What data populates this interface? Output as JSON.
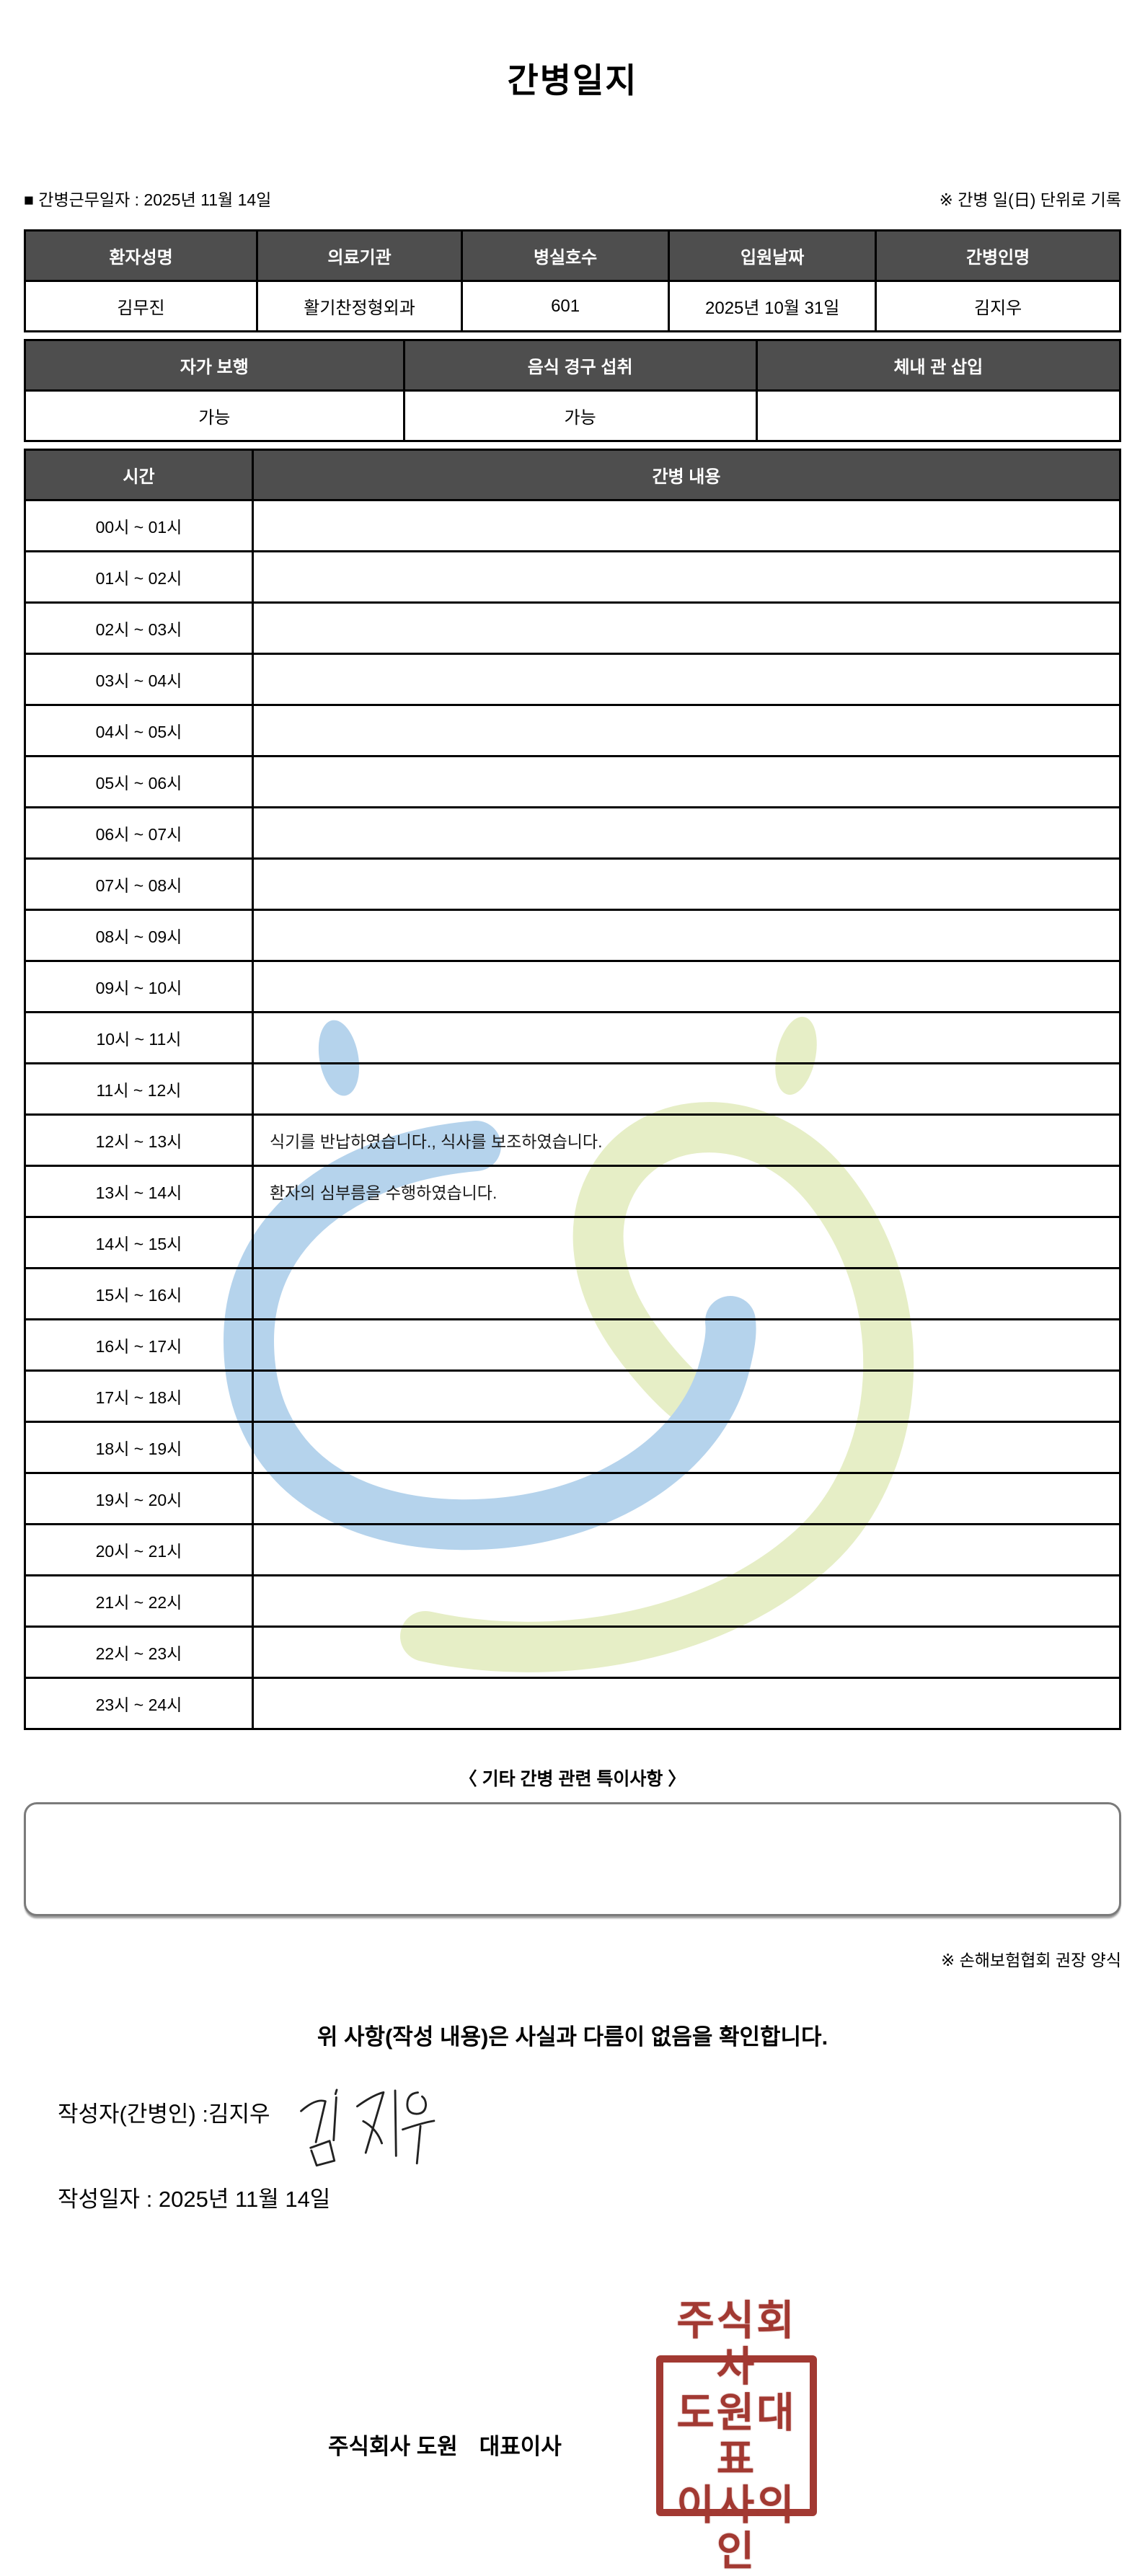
{
  "title": "간병일지",
  "meta": {
    "work_date_label": "■ 간병근무일자 : ",
    "work_date": "2025년 11월 14일",
    "unit_note": "※ 간병 일(日) 단위로 기록"
  },
  "patient_table": {
    "headers": [
      "환자성명",
      "의료기관",
      "병실호수",
      "입원날짜",
      "간병인명"
    ],
    "values": [
      "김무진",
      "활기찬정형외과",
      "601",
      "2025년 10월 31일",
      "김지우"
    ]
  },
  "condition_table": {
    "headers": [
      "자가 보행",
      "음식 경구 섭취",
      "체내 관 삽입"
    ],
    "values": [
      "가능",
      "가능",
      ""
    ]
  },
  "care_log": {
    "time_header": "시간",
    "content_header": "간병 내용",
    "rows": [
      {
        "time": "00시 ~ 01시",
        "content": ""
      },
      {
        "time": "01시 ~ 02시",
        "content": ""
      },
      {
        "time": "02시 ~ 03시",
        "content": ""
      },
      {
        "time": "03시 ~ 04시",
        "content": ""
      },
      {
        "time": "04시 ~ 05시",
        "content": ""
      },
      {
        "time": "05시 ~ 06시",
        "content": ""
      },
      {
        "time": "06시 ~ 07시",
        "content": ""
      },
      {
        "time": "07시 ~ 08시",
        "content": ""
      },
      {
        "time": "08시 ~ 09시",
        "content": ""
      },
      {
        "time": "09시 ~ 10시",
        "content": ""
      },
      {
        "time": "10시 ~ 11시",
        "content": ""
      },
      {
        "time": "11시 ~ 12시",
        "content": ""
      },
      {
        "time": "12시 ~ 13시",
        "content": "식기를 반납하였습니다., 식사를 보조하였습니다."
      },
      {
        "time": "13시 ~ 14시",
        "content": "환자의 심부름을 수행하였습니다."
      },
      {
        "time": "14시 ~ 15시",
        "content": ""
      },
      {
        "time": "15시 ~ 16시",
        "content": ""
      },
      {
        "time": "16시 ~ 17시",
        "content": ""
      },
      {
        "time": "17시 ~ 18시",
        "content": ""
      },
      {
        "time": "18시 ~ 19시",
        "content": ""
      },
      {
        "time": "19시 ~ 20시",
        "content": ""
      },
      {
        "time": "20시 ~ 21시",
        "content": ""
      },
      {
        "time": "21시 ~ 22시",
        "content": ""
      },
      {
        "time": "22시 ~ 23시",
        "content": ""
      },
      {
        "time": "23시 ~ 24시",
        "content": ""
      }
    ]
  },
  "notes": {
    "label": "〈 기타 간병 관련 특이사항 〉",
    "content": ""
  },
  "form_note": "※ 손해보험협회 권장 양식",
  "confirmation": "위 사항(작성 내용)은 사실과 다름이 없음을 확인합니다.",
  "writer": {
    "label": "작성자(간병인) : ",
    "name": "김지우",
    "signature_name": "김지우"
  },
  "written_date": {
    "label": "작성일자 : ",
    "date": "2025년 11월 14일"
  },
  "footer": {
    "company": "주식회사 도원",
    "ceo_title": "대표이사",
    "stamp_lines": [
      "주식회사",
      "도원대표",
      "이사의인"
    ]
  },
  "colors": {
    "header_bg": "#4e4e4e",
    "stamp_red": "#9e2f28",
    "watermark_blue": "#b5d3ec",
    "watermark_green": "#e6eec6"
  }
}
